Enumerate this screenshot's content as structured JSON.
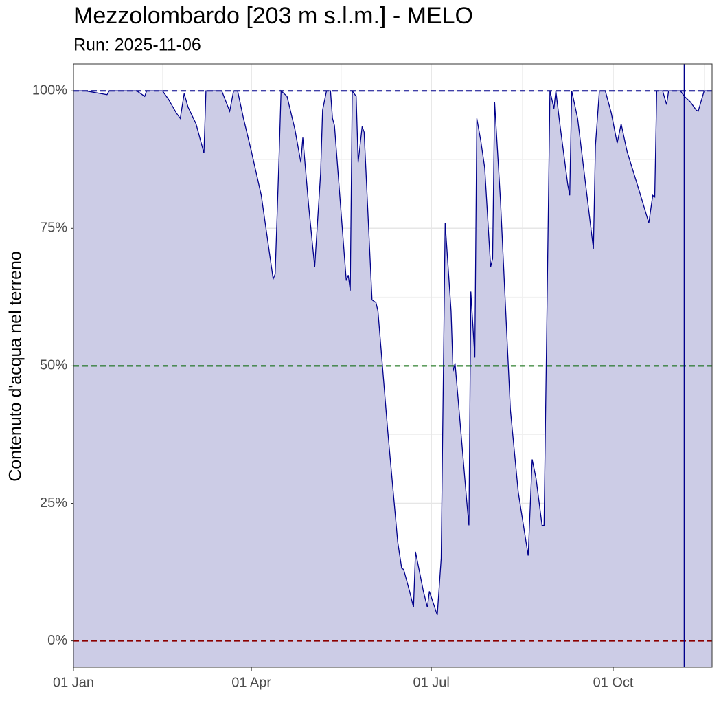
{
  "chart_data": {
    "type": "area",
    "title": "Mezzolombardo [203 m s.l.m.] - MELO",
    "subtitle": "Run: 2025-11-06",
    "y_label": "Contenuto d'acqua nel terreno",
    "color": "#00008b",
    "fill": "#ccccE6",
    "grid": true,
    "x": [
      "01 Jan",
      "07 Jan",
      "18 Jan",
      "19 Jan",
      "02 Feb",
      "06 Feb",
      "07 Feb",
      "15 Feb",
      "18 Feb",
      "22 Feb",
      "24 Feb",
      "26 Feb",
      "28 Feb",
      "04 Mar",
      "08 Mar",
      "09 Mar",
      "17 Mar",
      "21 Mar",
      "23 Mar",
      "25 Mar",
      "28 Mar",
      "01 Apr",
      "06 Apr",
      "12 Apr",
      "13 Apr",
      "15 Apr",
      "16 Apr",
      "19 Apr",
      "23 Apr",
      "26 Apr",
      "27 Apr",
      "30 Apr",
      "03 May",
      "06 May",
      "07 May",
      "09 May",
      "11 May",
      "12 May",
      "13 May",
      "19 May",
      "20 May",
      "21 May",
      "22 May",
      "24 May",
      "25 May",
      "27 May",
      "28 May",
      "01 Jun",
      "03 Jun",
      "04 Jun",
      "09 Jun",
      "14 Jun",
      "16 Jun",
      "17 Jun",
      "20 Jun",
      "22 Jun",
      "23 Jun",
      "27 Jun",
      "29 Jun",
      "30 Jun",
      "04 Jul",
      "06 Jul",
      "08 Jul",
      "11 Jul",
      "12 Jul",
      "13 Jul",
      "15 Jul",
      "19 Jul",
      "20 Jul",
      "21 Jul",
      "23 Jul",
      "24 Jul",
      "26 Jul",
      "28 Jul",
      "31 Jul",
      "01 Aug",
      "02 Aug",
      "05 Aug",
      "10 Aug",
      "14 Aug",
      "19 Aug",
      "21 Aug",
      "23 Aug",
      "26 Aug",
      "27 Aug",
      "29 Aug",
      "30 Aug",
      "01 Sep",
      "02 Sep",
      "04 Sep",
      "08 Sep",
      "09 Sep",
      "10 Sep",
      "13 Sep",
      "21 Sep",
      "22 Sep",
      "24 Sep",
      "27 Sep",
      "30 Sep",
      "03 Oct",
      "05 Oct",
      "08 Oct",
      "14 Oct",
      "19 Oct",
      "21 Oct",
      "22 Oct",
      "23 Oct",
      "26 Oct",
      "28 Oct",
      "29 Oct",
      "04 Nov",
      "06 Nov",
      "09 Nov",
      "12 Nov",
      "13 Nov",
      "16 Nov",
      "20 Nov"
    ],
    "values": [
      100,
      100,
      99.3,
      100,
      100,
      99,
      100,
      100,
      98.5,
      96,
      95,
      99.5,
      97,
      94,
      88.7,
      100,
      100,
      96.3,
      100,
      100,
      95,
      89,
      81,
      65.8,
      66.7,
      88,
      100,
      99,
      93,
      87,
      91.5,
      79,
      68,
      85,
      96.5,
      100,
      100,
      95,
      93.7,
      65.5,
      66.5,
      63.7,
      100,
      99,
      87,
      93.5,
      92.5,
      62,
      61.5,
      60,
      38,
      18,
      13.2,
      13,
      9,
      6.1,
      16.2,
      9,
      6.1,
      9,
      4.7,
      15,
      76,
      60,
      49,
      50.5,
      42,
      25,
      21,
      63.5,
      51.5,
      95,
      91,
      86,
      68,
      69.5,
      98,
      80,
      42,
      27,
      15.5,
      33,
      29.5,
      21,
      21,
      73,
      100,
      96.8,
      100,
      94,
      83,
      81,
      100,
      95,
      71.3,
      90,
      100,
      100,
      96,
      90.5,
      94,
      89,
      82,
      76,
      81,
      80.7,
      100,
      100,
      97.5,
      100,
      100,
      99,
      98,
      96.5,
      96.3,
      100,
      100
    ],
    "xlim": [
      "01 Jan",
      "20 Nov"
    ],
    "xticks": [
      "01 Jan",
      "01 Apr",
      "01 Jul",
      "01 Oct"
    ],
    "ylim": [
      -4.8,
      104.9
    ],
    "yticks": [
      {
        "value": 0,
        "label": "0%"
      },
      {
        "value": 25,
        "label": "25%"
      },
      {
        "value": 50,
        "label": "50%"
      },
      {
        "value": 75,
        "label": "75%"
      },
      {
        "value": 100,
        "label": "100%"
      }
    ],
    "hlines": [
      {
        "value": 100,
        "color": "#00008b"
      },
      {
        "value": 50,
        "color": "#006400"
      },
      {
        "value": 0,
        "color": "#8b0000"
      }
    ],
    "vline": {
      "x": "06 Nov",
      "color": "#00008b"
    }
  }
}
